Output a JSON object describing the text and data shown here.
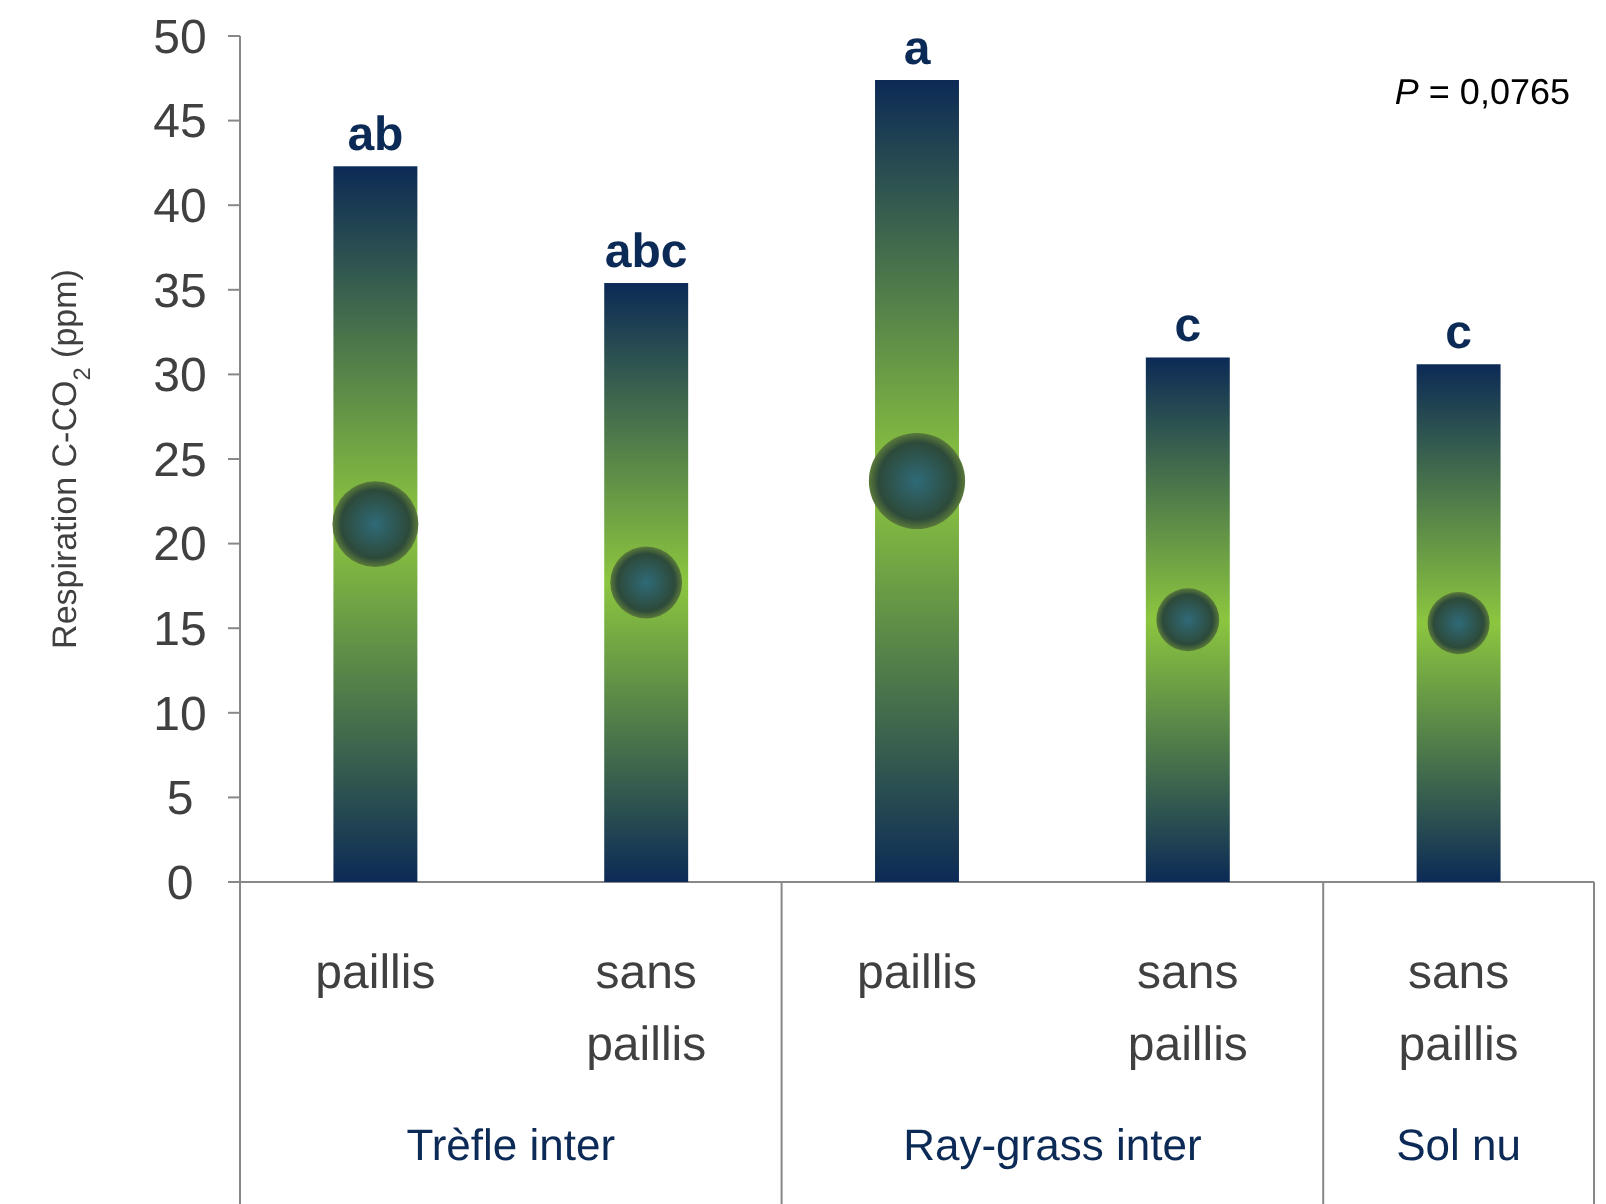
{
  "chart_data": {
    "type": "bar",
    "ylabel": "Respiration C-CO$_{2}$ (ppm)",
    "categories": [
      "paillis",
      "sans paillis",
      "paillis",
      "sans paillis",
      "sans paillis"
    ],
    "values": [
      42.3,
      35.4,
      47.4,
      31.0,
      30.6
    ],
    "value_labels": [
      "ab",
      "abc",
      "a",
      "c",
      "c"
    ],
    "color": "#0c2a56",
    "ylim": [
      0,
      50
    ],
    "yticks": [
      0,
      5,
      10,
      15,
      20,
      25,
      30,
      35,
      40,
      45,
      50
    ],
    "annotations": [
      "Trèfle inter",
      "Ray-grass inter",
      "Sol nu",
      "P = 0,0765"
    ]
  }
}
